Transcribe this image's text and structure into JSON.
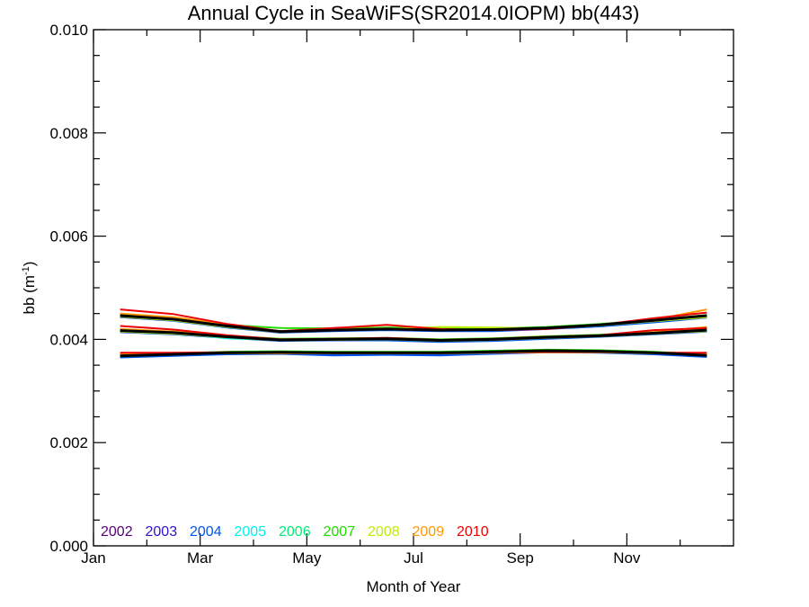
{
  "chart_data": {
    "type": "line",
    "title": "Annual Cycle in SeaWiFS(SR2014.0IOPM) bb(443)",
    "xlabel": "Month of Year",
    "ylabel_main": "bb (m",
    "ylabel_sup": "-1",
    "ylabel_tail": ")",
    "xlim": [
      0,
      12
    ],
    "ylim": [
      0,
      0.01
    ],
    "x_ticks": [
      {
        "value": 0,
        "label": "Jan"
      },
      {
        "value": 2,
        "label": "Mar"
      },
      {
        "value": 4,
        "label": "May"
      },
      {
        "value": 6,
        "label": "Jul"
      },
      {
        "value": 8,
        "label": "Sep"
      },
      {
        "value": 10,
        "label": "Nov"
      }
    ],
    "y_ticks": [
      {
        "value": 0.0,
        "label": "0.000"
      },
      {
        "value": 0.002,
        "label": "0.002"
      },
      {
        "value": 0.004,
        "label": "0.004"
      },
      {
        "value": 0.006,
        "label": "0.006"
      },
      {
        "value": 0.008,
        "label": "0.008"
      },
      {
        "value": 0.01,
        "label": "0.010"
      }
    ],
    "grid": false,
    "legend_position": "bottom-left",
    "x": [
      0.5,
      1.5,
      2.5,
      3.5,
      4.5,
      5.5,
      6.5,
      7.5,
      8.5,
      9.5,
      10.5,
      11.5
    ],
    "series": [
      {
        "name": "2002",
        "color": "#550077",
        "groups": [
          [
            0.00445,
            0.00438,
            0.00425,
            0.00413,
            0.00418,
            0.0042,
            0.00417,
            0.00418,
            0.00421,
            0.00427,
            0.00435,
            0.00444
          ],
          [
            0.00416,
            0.00412,
            0.00405,
            0.00398,
            0.00399,
            0.004,
            0.00397,
            0.00399,
            0.00403,
            0.00406,
            0.00411,
            0.00417
          ],
          [
            0.00367,
            0.0037,
            0.00373,
            0.00374,
            0.00373,
            0.00373,
            0.00373,
            0.00375,
            0.00377,
            0.00376,
            0.00373,
            0.00368
          ]
        ]
      },
      {
        "name": "2003",
        "color": "#3311cc",
        "groups": [
          [
            0.00444,
            0.00437,
            0.00424,
            0.00414,
            0.00417,
            0.00419,
            0.00417,
            0.00417,
            0.00421,
            0.00426,
            0.00434,
            0.00443
          ],
          [
            0.00415,
            0.00411,
            0.00404,
            0.00398,
            0.00399,
            0.00399,
            0.00396,
            0.00398,
            0.00402,
            0.00406,
            0.00411,
            0.00416
          ],
          [
            0.00366,
            0.00369,
            0.00372,
            0.00373,
            0.00372,
            0.00372,
            0.00372,
            0.00374,
            0.00376,
            0.00375,
            0.00372,
            0.00367
          ]
        ]
      },
      {
        "name": "2004",
        "color": "#0055ee",
        "groups": [
          [
            0.00443,
            0.00436,
            0.00423,
            0.00413,
            0.00416,
            0.00418,
            0.00416,
            0.00416,
            0.0042,
            0.00425,
            0.00433,
            0.00442
          ],
          [
            0.00414,
            0.0041,
            0.00403,
            0.00397,
            0.00398,
            0.00398,
            0.00395,
            0.00397,
            0.00401,
            0.00405,
            0.0041,
            0.00415
          ],
          [
            0.00365,
            0.00368,
            0.00371,
            0.00372,
            0.00369,
            0.0037,
            0.00369,
            0.00372,
            0.00375,
            0.00374,
            0.00371,
            0.00366
          ]
        ]
      },
      {
        "name": "2005",
        "color": "#00eeee",
        "groups": [
          [
            0.00446,
            0.00439,
            0.00426,
            0.00415,
            0.00419,
            0.00421,
            0.00418,
            0.00419,
            0.00422,
            0.00428,
            0.00436,
            0.00445
          ],
          [
            0.00417,
            0.00413,
            0.00402,
            0.00399,
            0.004,
            0.00401,
            0.00398,
            0.004,
            0.00404,
            0.00407,
            0.00412,
            0.00418
          ],
          [
            0.00368,
            0.00371,
            0.00374,
            0.00375,
            0.00374,
            0.00374,
            0.00374,
            0.00376,
            0.00378,
            0.00377,
            0.00374,
            0.00369
          ]
        ]
      },
      {
        "name": "2006",
        "color": "#00ee77",
        "groups": [
          [
            0.00447,
            0.0044,
            0.00427,
            0.00416,
            0.0042,
            0.00422,
            0.00419,
            0.0042,
            0.00423,
            0.00429,
            0.00437,
            0.00446
          ],
          [
            0.00418,
            0.00414,
            0.00406,
            0.004,
            0.00401,
            0.00402,
            0.00399,
            0.00401,
            0.00405,
            0.00408,
            0.00413,
            0.00419
          ],
          [
            0.00369,
            0.00372,
            0.00375,
            0.00376,
            0.00375,
            0.00375,
            0.00375,
            0.00377,
            0.00379,
            0.00378,
            0.00375,
            0.0037
          ]
        ]
      },
      {
        "name": "2007",
        "color": "#22dd00",
        "groups": [
          [
            0.00448,
            0.00441,
            0.00428,
            0.00422,
            0.00421,
            0.00423,
            0.00422,
            0.00421,
            0.00424,
            0.0043,
            0.00438,
            0.00447
          ],
          [
            0.00419,
            0.00415,
            0.00407,
            0.00401,
            0.00402,
            0.00403,
            0.004,
            0.00402,
            0.00406,
            0.00409,
            0.00414,
            0.0042
          ],
          [
            0.0037,
            0.00373,
            0.00376,
            0.00377,
            0.00376,
            0.00376,
            0.00376,
            0.00378,
            0.0038,
            0.00379,
            0.00376,
            0.00371
          ]
        ]
      },
      {
        "name": "2008",
        "color": "#bbee00",
        "groups": [
          [
            0.00444,
            0.00437,
            0.00424,
            0.00414,
            0.00418,
            0.0042,
            0.00424,
            0.00423,
            0.00421,
            0.00427,
            0.00435,
            0.00443
          ],
          [
            0.00415,
            0.00411,
            0.00404,
            0.00398,
            0.00399,
            0.004,
            0.00397,
            0.00399,
            0.00403,
            0.00406,
            0.00411,
            0.00416
          ],
          [
            0.00368,
            0.00371,
            0.00374,
            0.00375,
            0.00374,
            0.00374,
            0.00374,
            0.00376,
            0.00378,
            0.00377,
            0.00374,
            0.00369
          ]
        ]
      },
      {
        "name": "2009",
        "color": "#ff9900",
        "groups": [
          [
            0.0045,
            0.00443,
            0.00429,
            0.00415,
            0.00419,
            0.00421,
            0.00418,
            0.00419,
            0.00422,
            0.00428,
            0.00438,
            0.00458
          ],
          [
            0.0042,
            0.00415,
            0.00406,
            0.00399,
            0.004,
            0.00401,
            0.00398,
            0.004,
            0.00404,
            0.00407,
            0.00414,
            0.00424
          ],
          [
            0.00372,
            0.00372,
            0.00373,
            0.00373,
            0.00373,
            0.00373,
            0.00373,
            0.00374,
            0.00375,
            0.00375,
            0.00373,
            0.00372
          ]
        ]
      },
      {
        "name": "2010",
        "color": "#ee0000",
        "groups": [
          [
            0.00458,
            0.00449,
            0.0043,
            0.00416,
            0.00422,
            0.00428,
            0.0042,
            0.00418,
            0.0042,
            0.00428,
            0.00441,
            0.00452
          ],
          [
            0.00426,
            0.00419,
            0.00408,
            0.004,
            0.00401,
            0.00403,
            0.00399,
            0.00401,
            0.00405,
            0.00408,
            0.00418,
            0.00422
          ],
          [
            0.00374,
            0.00374,
            0.00375,
            0.00375,
            0.00374,
            0.00374,
            0.00374,
            0.00375,
            0.00376,
            0.00376,
            0.00374,
            0.00374
          ]
        ]
      }
    ],
    "mean_series": {
      "color": "#000000",
      "groups": [
        [
          0.00446,
          0.00439,
          0.00426,
          0.00415,
          0.00418,
          0.0042,
          0.00418,
          0.00419,
          0.00422,
          0.00428,
          0.00437,
          0.00446
        ],
        [
          0.00417,
          0.00413,
          0.00405,
          0.00399,
          0.004,
          0.00401,
          0.00398,
          0.004,
          0.00404,
          0.00407,
          0.00412,
          0.00418
        ],
        [
          0.00368,
          0.00371,
          0.00374,
          0.00375,
          0.00374,
          0.00374,
          0.00374,
          0.00376,
          0.00378,
          0.00377,
          0.00374,
          0.00369
        ]
      ]
    }
  }
}
